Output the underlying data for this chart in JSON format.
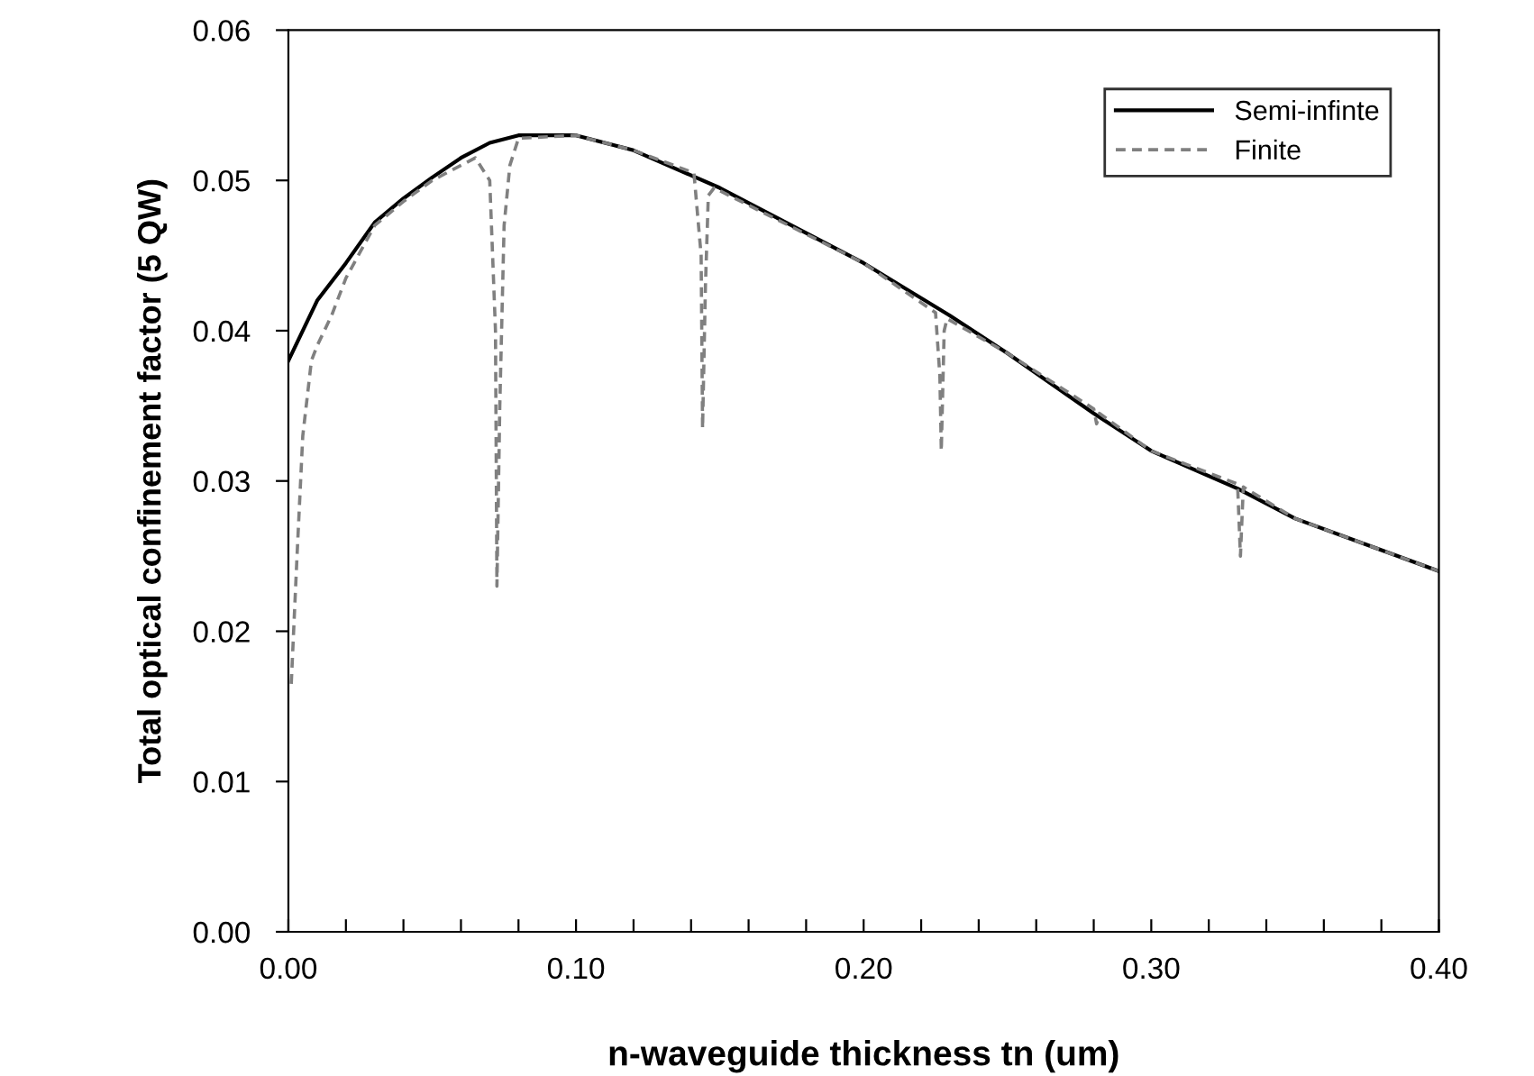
{
  "chart_data": {
    "type": "line",
    "xlabel": "n-waveguide thickness tn (um)",
    "ylabel": "Total optical confinement factor (5 QW)",
    "xlim": [
      0,
      0.4
    ],
    "ylim": [
      0,
      0.06
    ],
    "xticks": [
      {
        "value": 0,
        "label": "0.00"
      },
      {
        "value": 0.02,
        "label": null
      },
      {
        "value": 0.04,
        "label": null
      },
      {
        "value": 0.06,
        "label": null
      },
      {
        "value": 0.08,
        "label": null
      },
      {
        "value": 0.1,
        "label": "0.10"
      },
      {
        "value": 0.12,
        "label": null
      },
      {
        "value": 0.14,
        "label": null
      },
      {
        "value": 0.16,
        "label": null
      },
      {
        "value": 0.18,
        "label": null
      },
      {
        "value": 0.2,
        "label": "0.20"
      },
      {
        "value": 0.22,
        "label": null
      },
      {
        "value": 0.24,
        "label": null
      },
      {
        "value": 0.26,
        "label": null
      },
      {
        "value": 0.28,
        "label": null
      },
      {
        "value": 0.3,
        "label": "0.30"
      },
      {
        "value": 0.32,
        "label": null
      },
      {
        "value": 0.34,
        "label": null
      },
      {
        "value": 0.36,
        "label": null
      },
      {
        "value": 0.38,
        "label": null
      },
      {
        "value": 0.4,
        "label": "0.40"
      }
    ],
    "yticks": [
      {
        "value": 0,
        "label": "0.00"
      },
      {
        "value": 0.01,
        "label": "0.01"
      },
      {
        "value": 0.02,
        "label": "0.02"
      },
      {
        "value": 0.03,
        "label": "0.03"
      },
      {
        "value": 0.04,
        "label": "0.04"
      },
      {
        "value": 0.05,
        "label": "0.05"
      },
      {
        "value": 0.06,
        "label": "0.06"
      }
    ],
    "grid": false,
    "legend": "top right",
    "marker": "none",
    "series": [
      {
        "name": "Semi-infinte",
        "color": "#000000",
        "line_style": "solid",
        "x": [
          0,
          0.01,
          0.02,
          0.03,
          0.04,
          0.05,
          0.06,
          0.07,
          0.08,
          0.1,
          0.12,
          0.15,
          0.2,
          0.23,
          0.25,
          0.28,
          0.3,
          0.33,
          0.35,
          0.4
        ],
        "values": [
          0.038,
          0.042,
          0.0445,
          0.0472,
          0.0488,
          0.0502,
          0.0515,
          0.0525,
          0.053,
          0.053,
          0.052,
          0.0495,
          0.0445,
          0.041,
          0.0385,
          0.0345,
          0.032,
          0.0295,
          0.0275,
          0.024
        ]
      },
      {
        "name": "Finite",
        "color": "#808080",
        "line_style": "dashed",
        "x": [
          0.001,
          0.003,
          0.005,
          0.008,
          0.01,
          0.015,
          0.02,
          0.03,
          0.04,
          0.05,
          0.065,
          0.07,
          0.072,
          0.0725,
          0.0735,
          0.075,
          0.077,
          0.08,
          0.1,
          0.12,
          0.141,
          0.1435,
          0.144,
          0.145,
          0.146,
          0.148,
          0.2,
          0.225,
          0.2265,
          0.227,
          0.228,
          0.229,
          0.25,
          0.28,
          0.281,
          0.282,
          0.3,
          0.33,
          0.331,
          0.332,
          0.35,
          0.4
        ],
        "values": [
          0.0165,
          0.025,
          0.033,
          0.038,
          0.039,
          0.041,
          0.0435,
          0.047,
          0.0486,
          0.05,
          0.0515,
          0.05,
          0.04,
          0.023,
          0.035,
          0.047,
          0.051,
          0.0528,
          0.053,
          0.052,
          0.0505,
          0.045,
          0.0335,
          0.043,
          0.049,
          0.0495,
          0.0445,
          0.0412,
          0.037,
          0.032,
          0.04,
          0.0408,
          0.0385,
          0.0348,
          0.0338,
          0.0345,
          0.032,
          0.0298,
          0.025,
          0.0296,
          0.0275,
          0.024
        ]
      }
    ]
  }
}
